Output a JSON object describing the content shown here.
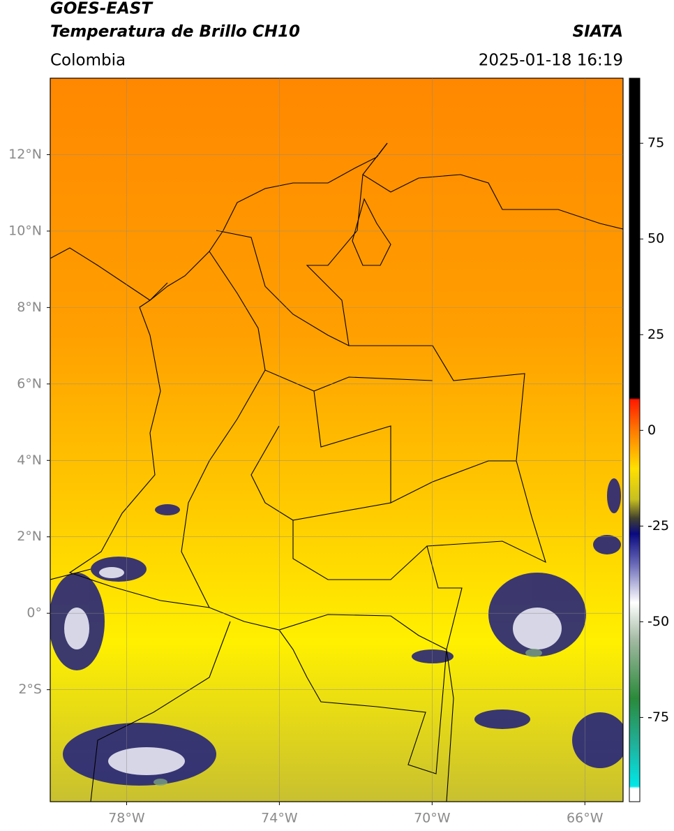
{
  "header": {
    "title": "GOES-EAST",
    "subtitle": "Temperatura de Brillo CH10",
    "source": "SIATA",
    "region": "Colombia",
    "datetime": "2025-01-18 16:19"
  },
  "map": {
    "xlim": [
      -80,
      -65
    ],
    "ylim": [
      -4.93,
      14
    ],
    "xticks": [
      {
        "value": -78,
        "label": "78°W"
      },
      {
        "value": -74,
        "label": "74°W"
      },
      {
        "value": -70,
        "label": "70°W"
      },
      {
        "value": -66,
        "label": "66°W"
      }
    ],
    "yticks": [
      {
        "value": 12,
        "label": "12°N"
      },
      {
        "value": 10,
        "label": "10°N"
      },
      {
        "value": 8,
        "label": "8°N"
      },
      {
        "value": 6,
        "label": "6°N"
      },
      {
        "value": 4,
        "label": "4°N"
      },
      {
        "value": 2,
        "label": "2°N"
      },
      {
        "value": 0,
        "label": "0°"
      },
      {
        "value": -2,
        "label": "2°S"
      }
    ],
    "grid": true
  },
  "colorbar": {
    "clim": [
      -97,
      92
    ],
    "ticks": [
      75,
      50,
      25,
      0,
      -25,
      -50,
      -75
    ],
    "colormap": [
      {
        "value": 92,
        "color": "#000000"
      },
      {
        "value": 8.5,
        "color": "#000000"
      },
      {
        "value": 8,
        "color": "#ff1a00"
      },
      {
        "value": 0,
        "color": "#ff7a00"
      },
      {
        "value": -10,
        "color": "#ffe000"
      },
      {
        "value": -18,
        "color": "#c8c020"
      },
      {
        "value": -23,
        "color": "#404030"
      },
      {
        "value": -27,
        "color": "#0a0a80"
      },
      {
        "value": -35,
        "color": "#6a6ab8"
      },
      {
        "value": -45,
        "color": "#ffffff"
      },
      {
        "value": -55,
        "color": "#a0b8a0"
      },
      {
        "value": -70,
        "color": "#2a8a3a"
      },
      {
        "value": -82,
        "color": "#20b09a"
      },
      {
        "value": -93,
        "color": "#00e8e8"
      },
      {
        "value": -93.5,
        "color": "#ffffff"
      },
      {
        "value": -97,
        "color": "#ffffff"
      }
    ]
  }
}
